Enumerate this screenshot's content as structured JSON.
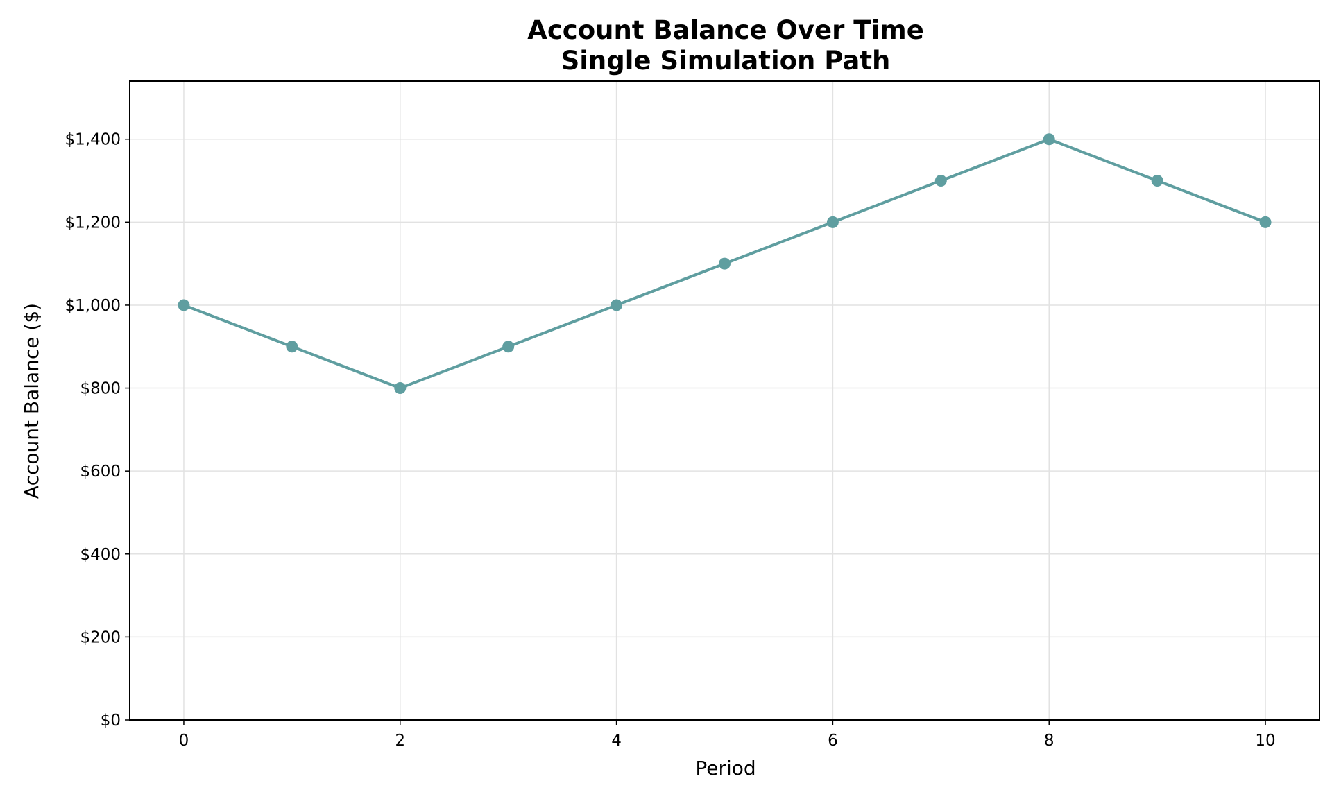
{
  "chart_data": {
    "type": "line",
    "title": "Account Balance Over Time",
    "subtitle": "Single Simulation Path",
    "xlabel": "Period",
    "ylabel": "Account Balance ($)",
    "xlim": [
      -0.5,
      10.5
    ],
    "ylim": [
      0,
      1540
    ],
    "xticks": [
      0,
      2,
      4,
      6,
      8,
      10
    ],
    "yticks": [
      0,
      200,
      400,
      600,
      800,
      1000,
      1200,
      1400
    ],
    "ytick_labels": [
      "$0",
      "$200",
      "$400",
      "$600",
      "$800",
      "$1,000",
      "$1,200",
      "$1,400"
    ],
    "grid": true,
    "series": [
      {
        "color": "#5f9ea0",
        "marker": "circle",
        "x": [
          0,
          1,
          2,
          3,
          4,
          5,
          6,
          7,
          8,
          9,
          10
        ],
        "y": [
          1000,
          900,
          800,
          900,
          1000,
          1100,
          1200,
          1300,
          1400,
          1300,
          1200
        ]
      }
    ]
  }
}
